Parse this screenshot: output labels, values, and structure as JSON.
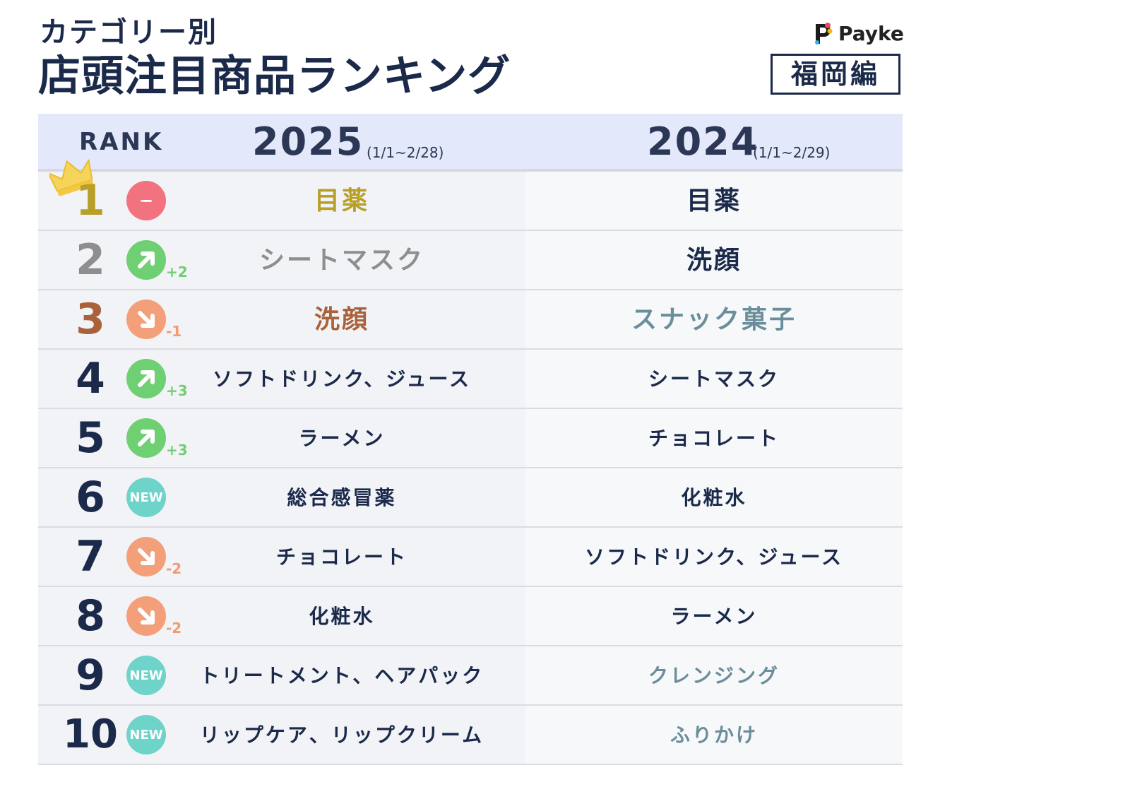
{
  "header": {
    "subtitle": "カテゴリー別",
    "title": "店頭注目商品ランキング",
    "brand": "Payke",
    "region": "福岡編"
  },
  "table": {
    "rank_label": "RANK",
    "col_2025": {
      "year": "2025",
      "period": "(1/1~2/28)"
    },
    "col_2024": {
      "year": "2024",
      "period": "(1/1~2/29)"
    },
    "rows": [
      {
        "rank": "1",
        "rank_color": "#b8a028",
        "change": "−",
        "change_type": "same",
        "badge_color": "#f2727f",
        "delta": "",
        "item_2025": "目薬",
        "item_2025_color": "#b8a028",
        "item_2024": "目薬",
        "item_2024_color": "#1b2a4a"
      },
      {
        "rank": "2",
        "rank_color": "#8e8e8e",
        "change": "up",
        "change_type": "up",
        "badge_color": "#6fcf73",
        "delta": "+2",
        "delta_color": "#6fcf73",
        "item_2025": "シートマスク",
        "item_2025_color": "#8e8e8e",
        "item_2024": "洗顔",
        "item_2024_color": "#1b2a4a"
      },
      {
        "rank": "3",
        "rank_color": "#a9623a",
        "change": "down",
        "change_type": "down",
        "badge_color": "#f3a07a",
        "delta": "-1",
        "delta_color": "#f39a73",
        "item_2025": "洗顔",
        "item_2025_color": "#a9623a",
        "item_2024": "スナック菓子",
        "item_2024_color": "#6a8e9a"
      },
      {
        "rank": "4",
        "rank_color": "#1b2a4a",
        "change": "up",
        "change_type": "up",
        "badge_color": "#6fcf73",
        "delta": "+3",
        "delta_color": "#6fcf73",
        "item_2025": "ソフトドリンク、ジュース",
        "item_2025_color": "#1b2a4a",
        "item_2024": "シートマスク",
        "item_2024_color": "#1b2a4a"
      },
      {
        "rank": "5",
        "rank_color": "#1b2a4a",
        "change": "up",
        "change_type": "up",
        "badge_color": "#6fcf73",
        "delta": "+3",
        "delta_color": "#6fcf73",
        "item_2025": "ラーメン",
        "item_2025_color": "#1b2a4a",
        "item_2024": "チョコレート",
        "item_2024_color": "#1b2a4a"
      },
      {
        "rank": "6",
        "rank_color": "#1b2a4a",
        "change": "NEW",
        "change_type": "new",
        "badge_color": "#6ed3c9",
        "delta": "",
        "item_2025": "総合感冒薬",
        "item_2025_color": "#1b2a4a",
        "item_2024": "化粧水",
        "item_2024_color": "#1b2a4a"
      },
      {
        "rank": "7",
        "rank_color": "#1b2a4a",
        "change": "down",
        "change_type": "down",
        "badge_color": "#f3a07a",
        "delta": "-2",
        "delta_color": "#f39a73",
        "item_2025": "チョコレート",
        "item_2025_color": "#1b2a4a",
        "item_2024": "ソフトドリンク、ジュース",
        "item_2024_color": "#1b2a4a"
      },
      {
        "rank": "8",
        "rank_color": "#1b2a4a",
        "change": "down",
        "change_type": "down",
        "badge_color": "#f3a07a",
        "delta": "-2",
        "delta_color": "#f39a73",
        "item_2025": "化粧水",
        "item_2025_color": "#1b2a4a",
        "item_2024": "ラーメン",
        "item_2024_color": "#1b2a4a"
      },
      {
        "rank": "9",
        "rank_color": "#1b2a4a",
        "change": "NEW",
        "change_type": "new",
        "badge_color": "#6ed3c9",
        "delta": "",
        "item_2025": "トリートメント、ヘアパック",
        "item_2025_color": "#1b2a4a",
        "item_2024": "クレンジング",
        "item_2024_color": "#6a8e9a"
      },
      {
        "rank": "10",
        "rank_color": "#1b2a4a",
        "change": "NEW",
        "change_type": "new",
        "badge_color": "#6ed3c9",
        "delta": "",
        "item_2025": "リップケア、リップクリーム",
        "item_2025_color": "#1b2a4a",
        "item_2024": "ふりかけ",
        "item_2024_color": "#6a8e9a"
      }
    ]
  }
}
